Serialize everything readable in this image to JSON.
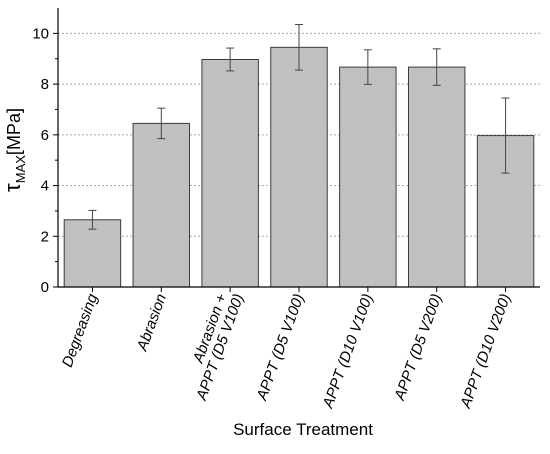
{
  "chart_data": {
    "type": "bar",
    "categories": [
      [
        "Degreasing"
      ],
      [
        "Abrasion"
      ],
      [
        "Abrasion +",
        "APPT (D5 V100)"
      ],
      [
        "APPT (D5 V100)"
      ],
      [
        "APPT (D10 V100)"
      ],
      [
        "APPT (D5 V200)"
      ],
      [
        "APPT (D10 V200)"
      ]
    ],
    "values": [
      2.65,
      6.45,
      8.97,
      9.45,
      8.67,
      8.67,
      5.97
    ],
    "errors": [
      0.37,
      0.6,
      0.45,
      0.9,
      0.68,
      0.72,
      1.48
    ],
    "ylabel": {
      "symbol": "τ",
      "sub": "MAX",
      "unit": "[MPa]"
    },
    "xlabel": "Surface Treatment",
    "ylim": [
      0,
      11
    ],
    "yticks": [
      0,
      2,
      4,
      6,
      8,
      10
    ],
    "grid": true,
    "colors": {
      "bar_fill": "#c0c0c0",
      "bar_stroke": "#3a3a3a",
      "grid": "#a8a8a8",
      "axis": "#000000",
      "error": "#444444"
    }
  }
}
